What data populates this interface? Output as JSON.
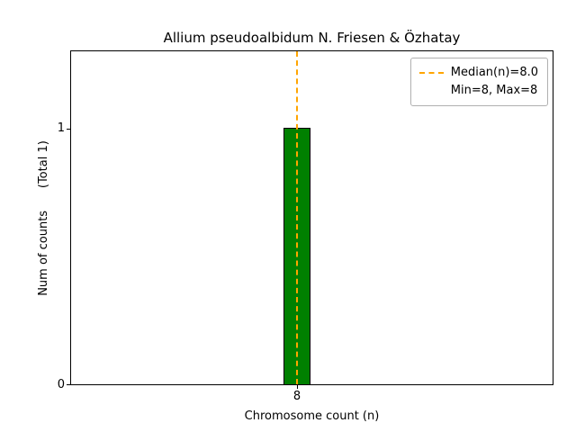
{
  "chart_data": {
    "type": "bar",
    "title": "Allium pseudoalbidum N. Friesen & Özhatay",
    "xlabel": "Chromosome count (n)",
    "ylabel": "Num of counts      (Total 1)",
    "categories": [
      "8"
    ],
    "values": [
      1
    ],
    "total_counts": 1,
    "ylim": [
      0,
      1.3
    ],
    "yticks": [
      "0",
      "1"
    ],
    "xticks": [
      "8"
    ],
    "bar_color": "#008000",
    "bar_edge_color": "#000000",
    "median_line": {
      "x": "8",
      "value": 8.0,
      "color": "#FFA500",
      "style": "dashed"
    },
    "legend": {
      "position": "upper right",
      "entries": [
        "Median(n)=8.0",
        "Min=8, Max=8"
      ]
    }
  }
}
